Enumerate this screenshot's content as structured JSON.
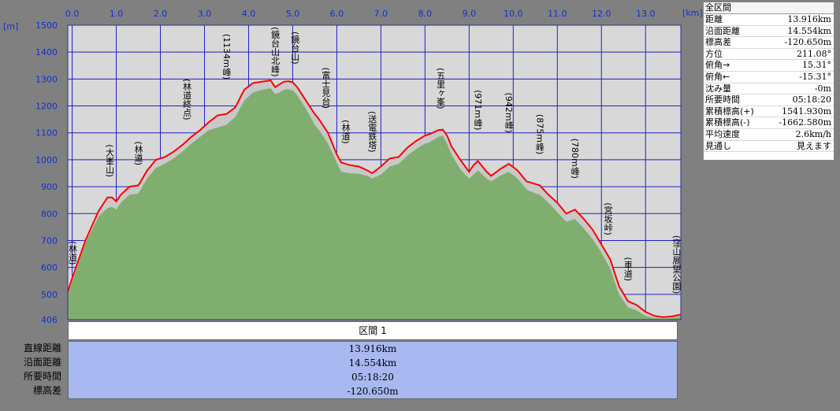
{
  "chart_data": {
    "type": "area",
    "xunit": "[km]",
    "yunit": "[m]",
    "xlim": [
      -0.1,
      13.8
    ],
    "ylim": [
      406,
      1500
    ],
    "xticks": [
      "0.0",
      "1.0",
      "2.0",
      "3.0",
      "4.0",
      "5.0",
      "6.0",
      "7.0",
      "8.0",
      "9.0",
      "10.0",
      "11.0",
      "12.0",
      "13.0"
    ],
    "yticks": [
      "1500",
      "1400",
      "1300",
      "1200",
      "1100",
      "1000",
      "900",
      "800",
      "700",
      "600",
      "500",
      "406"
    ],
    "x": [
      -0.1,
      0.0,
      0.3,
      0.6,
      0.8,
      0.9,
      1.0,
      1.1,
      1.3,
      1.5,
      1.7,
      1.9,
      2.1,
      2.3,
      2.5,
      2.7,
      2.9,
      3.1,
      3.3,
      3.5,
      3.7,
      3.9,
      4.1,
      4.3,
      4.5,
      4.6,
      4.7,
      4.8,
      4.9,
      5.0,
      5.1,
      5.3,
      5.5,
      5.6,
      5.8,
      6.0,
      6.1,
      6.3,
      6.5,
      6.7,
      6.8,
      7.0,
      7.2,
      7.4,
      7.6,
      7.8,
      8.0,
      8.1,
      8.3,
      8.4,
      8.5,
      8.6,
      8.8,
      9.0,
      9.1,
      9.2,
      9.4,
      9.5,
      9.7,
      9.9,
      10.1,
      10.3,
      10.5,
      10.6,
      10.8,
      11.0,
      11.2,
      11.4,
      11.6,
      11.8,
      12.0,
      12.2,
      12.4,
      12.6,
      12.8,
      13.0,
      13.2,
      13.4,
      13.6,
      13.8
    ],
    "series": [
      {
        "values": [
          510,
          560,
          700,
          810,
          860,
          860,
          845,
          870,
          900,
          905,
          960,
          1000,
          1010,
          1030,
          1055,
          1085,
          1110,
          1140,
          1165,
          1170,
          1195,
          1260,
          1285,
          1290,
          1295,
          1270,
          1280,
          1290,
          1292,
          1288,
          1270,
          1220,
          1170,
          1150,
          1100,
          1020,
          990,
          980,
          975,
          960,
          950,
          975,
          1005,
          1010,
          1045,
          1070,
          1090,
          1095,
          1110,
          1112,
          1090,
          1050,
          1000,
          955,
          980,
          995,
          955,
          940,
          965,
          985,
          960,
          920,
          910,
          905,
          870,
          840,
          800,
          815,
          780,
          740,
          685,
          630,
          530,
          475,
          460,
          435,
          420,
          415,
          418,
          425
        ]
      },
      {
        "values": [
          500,
          545,
          690,
          790,
          820,
          825,
          815,
          840,
          870,
          875,
          930,
          970,
          985,
          1005,
          1030,
          1060,
          1085,
          1110,
          1120,
          1130,
          1160,
          1220,
          1250,
          1260,
          1265,
          1245,
          1250,
          1260,
          1262,
          1258,
          1240,
          1190,
          1130,
          1110,
          1060,
          990,
          955,
          950,
          948,
          940,
          930,
          945,
          975,
          985,
          1015,
          1040,
          1060,
          1065,
          1085,
          1090,
          1060,
          1020,
          965,
          930,
          945,
          960,
          930,
          920,
          940,
          955,
          930,
          890,
          875,
          870,
          840,
          805,
          770,
          780,
          745,
          705,
          655,
          595,
          500,
          452,
          440,
          420,
          412,
          410,
          412,
          418
        ]
      }
    ],
    "annotations": [
      {
        "x": -0.05,
        "text": "(林道)"
      },
      {
        "x": 0.85,
        "text": "(大峯山)"
      },
      {
        "x": 1.5,
        "text": "(林道)"
      },
      {
        "x": 2.6,
        "text": "(林道終点)"
      },
      {
        "x": 3.5,
        "text": "(1134m峰)"
      },
      {
        "x": 4.6,
        "text": "(鏡台山北峰)"
      },
      {
        "x": 5.05,
        "text": "(鏡台山)"
      },
      {
        "x": 5.75,
        "text": "(富士見台)"
      },
      {
        "x": 6.2,
        "text": "(林道)"
      },
      {
        "x": 6.8,
        "text": "(送電鉄塔)"
      },
      {
        "x": 8.35,
        "text": "(五里ヶ峯)"
      },
      {
        "x": 9.2,
        "text": "(971m峰)"
      },
      {
        "x": 9.9,
        "text": "(942m峰)"
      },
      {
        "x": 10.6,
        "text": "(875m峰)"
      },
      {
        "x": 11.4,
        "text": "(780m峰)"
      },
      {
        "x": 12.15,
        "text": "(宮坂峠)"
      },
      {
        "x": 12.6,
        "text": "(車道)"
      },
      {
        "x": 13.7,
        "text": "(窪山展望公園)"
      }
    ]
  },
  "summary": {
    "title": "全区間",
    "rows": [
      {
        "label": "距離",
        "value": "13.916km"
      },
      {
        "label": "沿面距離",
        "value": "14.554km"
      },
      {
        "label": "標高差",
        "value": "-120.650m"
      },
      {
        "label": "方位",
        "value": "211.08°"
      },
      {
        "label": "俯角→",
        "value": "15.31°"
      },
      {
        "label": "俯角←",
        "value": "-15.31°"
      },
      {
        "label": "沈み量",
        "value": "-0m"
      },
      {
        "label": "所要時間",
        "value": "05:18:20"
      },
      {
        "label": "累積標高(+)",
        "value": "1541.930m"
      },
      {
        "label": "累積標高(-)",
        "value": "-1662.580m"
      },
      {
        "label": "平均速度",
        "value": "2.6km/h"
      },
      {
        "label": "見通し",
        "value": "見えます"
      }
    ]
  },
  "segment": {
    "header": "区間 1",
    "rows": [
      {
        "label": "直線距離",
        "value": "13.916km"
      },
      {
        "label": "沿面距離",
        "value": "14.554km"
      },
      {
        "label": "所要時間",
        "value": "05:18:20"
      },
      {
        "label": "標高差",
        "value": "-120.650m"
      }
    ]
  },
  "colors": {
    "plot_bg": "#d8d8d8",
    "grid": "#2020c0",
    "area": "#7fae6e",
    "line": "#ff0000",
    "shadow": "#c8c8c8",
    "tick": "#1030d0"
  }
}
